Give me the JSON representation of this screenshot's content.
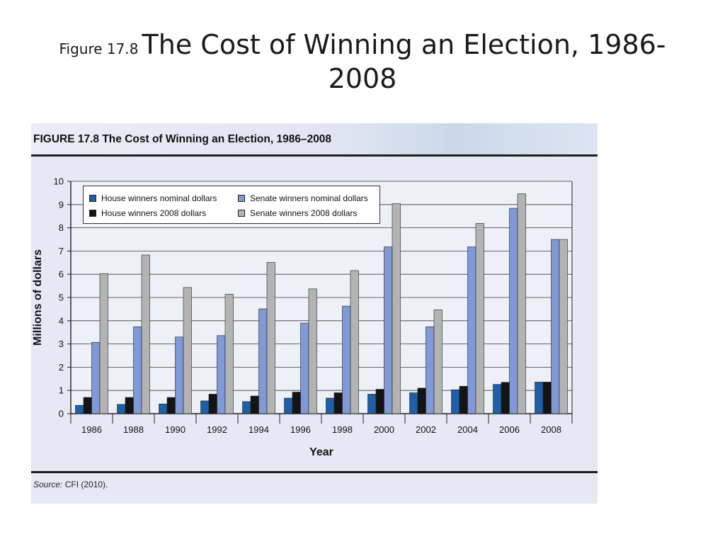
{
  "slide": {
    "title_prefix": "Figure 17.8",
    "title_main": "The Cost of Winning an Election, 1986-2008"
  },
  "figure": {
    "header": "FIGURE 17.8  The Cost of Winning an Election, 1986–2008",
    "source_lead": "Source:",
    "source_text": " CFI (2010)."
  },
  "chart_data": {
    "type": "bar",
    "title": "The Cost of Winning an Election, 1986–2008",
    "xlabel": "Year",
    "ylabel": "Millions of dollars",
    "ylim": [
      0,
      10
    ],
    "yticks": [
      0,
      1,
      2,
      3,
      4,
      5,
      6,
      7,
      8,
      9,
      10
    ],
    "grid": true,
    "legend_position": "top-left",
    "categories": [
      "1986",
      "1988",
      "1990",
      "1992",
      "1994",
      "1996",
      "1998",
      "2000",
      "2002",
      "2004",
      "2006",
      "2008"
    ],
    "series": [
      {
        "name": "House winners nominal dollars",
        "color": "#1f5fa8",
        "values": [
          0.36,
          0.4,
          0.42,
          0.55,
          0.52,
          0.67,
          0.67,
          0.84,
          0.9,
          1.03,
          1.26,
          1.36
        ]
      },
      {
        "name": "House winners 2008 dollars",
        "color": "#141414",
        "values": [
          0.7,
          0.7,
          0.7,
          0.84,
          0.76,
          0.93,
          0.9,
          1.05,
          1.1,
          1.18,
          1.35,
          1.36
        ]
      },
      {
        "name": "Senate winners nominal dollars",
        "color": "#7f9ad6",
        "values": [
          3.07,
          3.74,
          3.3,
          3.36,
          4.51,
          3.9,
          4.63,
          7.18,
          3.74,
          7.18,
          8.84,
          7.5
        ]
      },
      {
        "name": "Senate winners 2008 dollars",
        "color": "#b3b3b3",
        "values": [
          6.03,
          6.83,
          5.43,
          5.14,
          6.51,
          5.37,
          6.16,
          9.04,
          4.47,
          8.19,
          9.46,
          7.5
        ]
      }
    ]
  }
}
